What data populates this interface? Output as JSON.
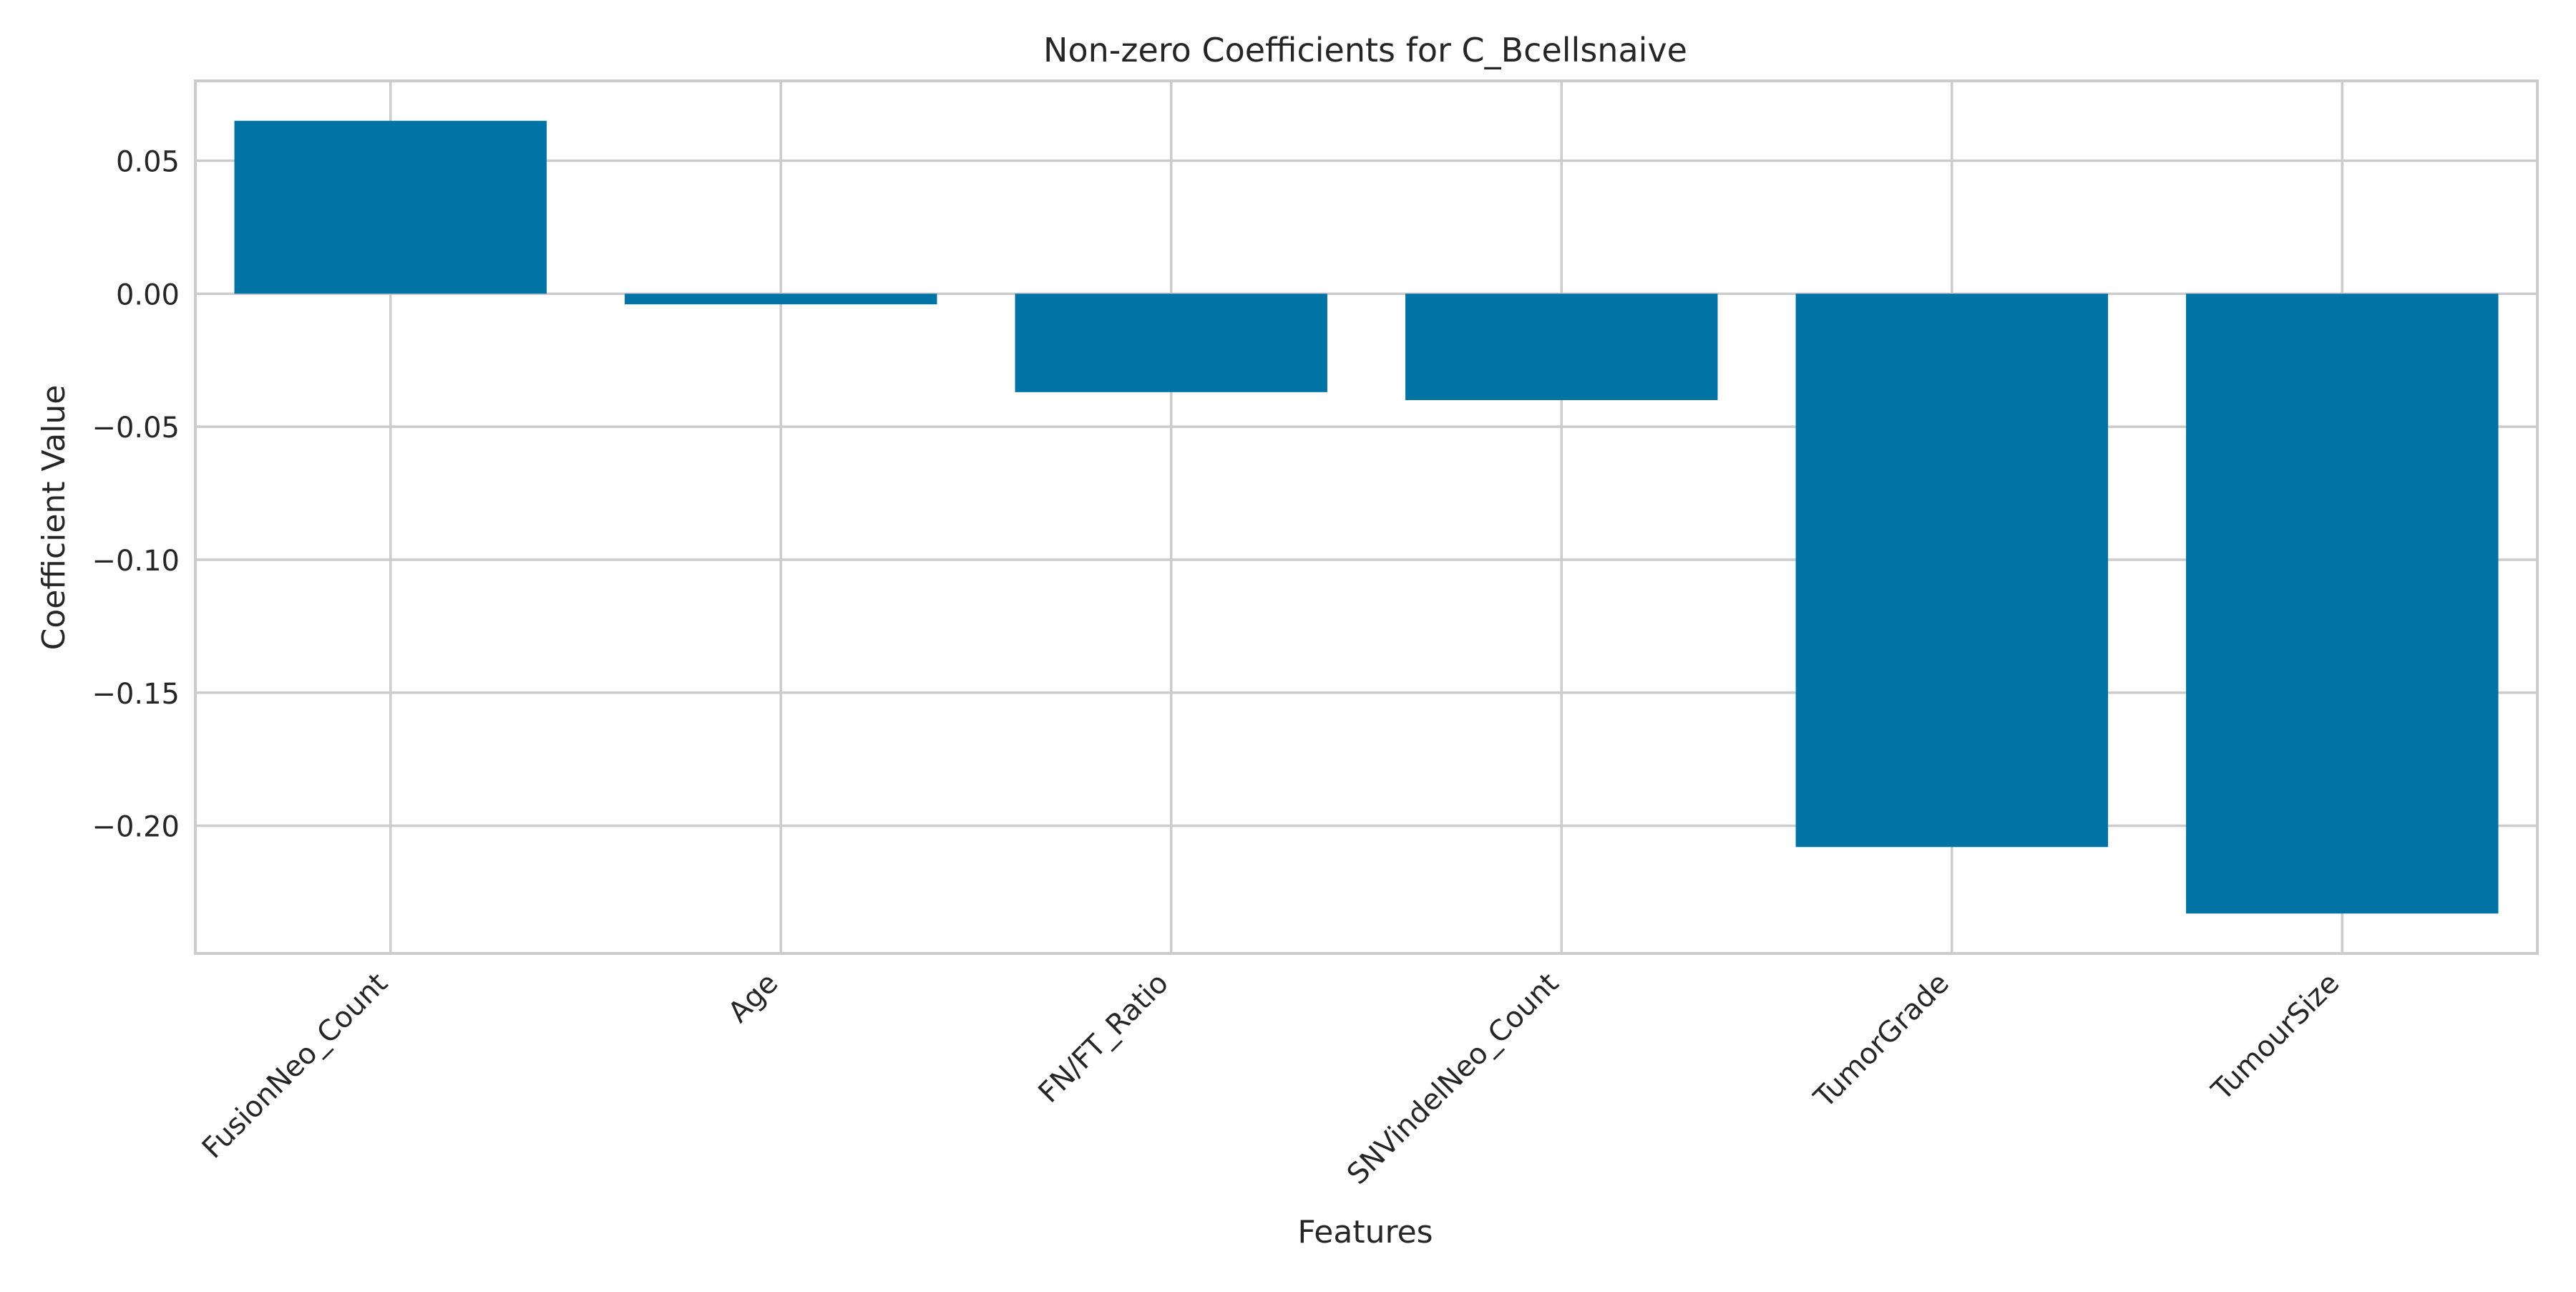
{
  "chart_data": {
    "type": "bar",
    "title": "Non-zero Coefficients for C_Bcellsnaive",
    "xlabel": "Features",
    "ylabel": "Coefficient Value",
    "categories": [
      "FusionNeo_Count",
      "Age",
      "FN/FT_Ratio",
      "SNVindelNeo_Count",
      "TumorGrade",
      "TumourSize"
    ],
    "values": [
      0.065,
      -0.004,
      -0.037,
      -0.04,
      -0.208,
      -0.233
    ],
    "ylim": [
      -0.248,
      0.08
    ],
    "yticks": [
      0.05,
      0.0,
      -0.05,
      -0.1,
      -0.15,
      -0.2
    ],
    "ytick_labels": [
      "0.05",
      "0.00",
      "−0.05",
      "−0.10",
      "−0.15",
      "−0.20"
    ],
    "grid": true,
    "colors": {
      "bar": "#0173a5",
      "grid": "#cccccc",
      "text": "#262626"
    }
  }
}
